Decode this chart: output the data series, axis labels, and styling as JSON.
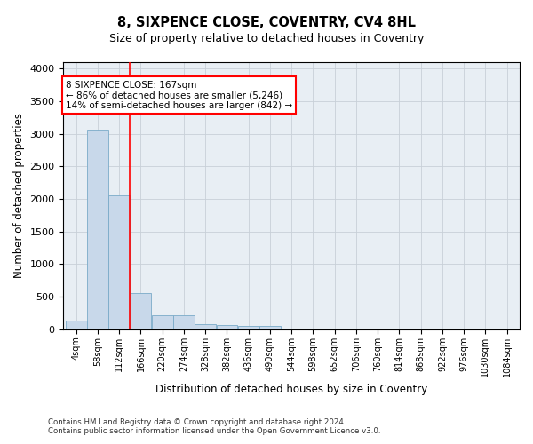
{
  "title": "8, SIXPENCE CLOSE, COVENTRY, CV4 8HL",
  "subtitle": "Size of property relative to detached houses in Coventry",
  "xlabel": "Distribution of detached houses by size in Coventry",
  "ylabel": "Number of detached properties",
  "footer_line1": "Contains HM Land Registry data © Crown copyright and database right 2024.",
  "footer_line2": "Contains public sector information licensed under the Open Government Licence v3.0.",
  "bin_labels": [
    "4sqm",
    "58sqm",
    "112sqm",
    "166sqm",
    "220sqm",
    "274sqm",
    "328sqm",
    "382sqm",
    "436sqm",
    "490sqm",
    "544sqm",
    "598sqm",
    "652sqm",
    "706sqm",
    "760sqm",
    "814sqm",
    "868sqm",
    "922sqm",
    "976sqm",
    "1030sqm",
    "1084sqm"
  ],
  "bar_heights": [
    140,
    3060,
    2060,
    560,
    210,
    210,
    80,
    70,
    55,
    55,
    0,
    0,
    0,
    0,
    0,
    0,
    0,
    0,
    0,
    0,
    0
  ],
  "bar_color": "#c8d8ea",
  "bar_edge_color": "#7aaac8",
  "property_line_color": "red",
  "annotation_text": "8 SIXPENCE CLOSE: 167sqm\n← 86% of detached houses are smaller (5,246)\n14% of semi-detached houses are larger (842) →",
  "annotation_box_color": "white",
  "annotation_box_edge_color": "red",
  "ylim": [
    0,
    4100
  ],
  "yticks": [
    0,
    500,
    1000,
    1500,
    2000,
    2500,
    3000,
    3500,
    4000
  ],
  "grid_color": "#c8d0d8",
  "background_color": "#e8eef4"
}
